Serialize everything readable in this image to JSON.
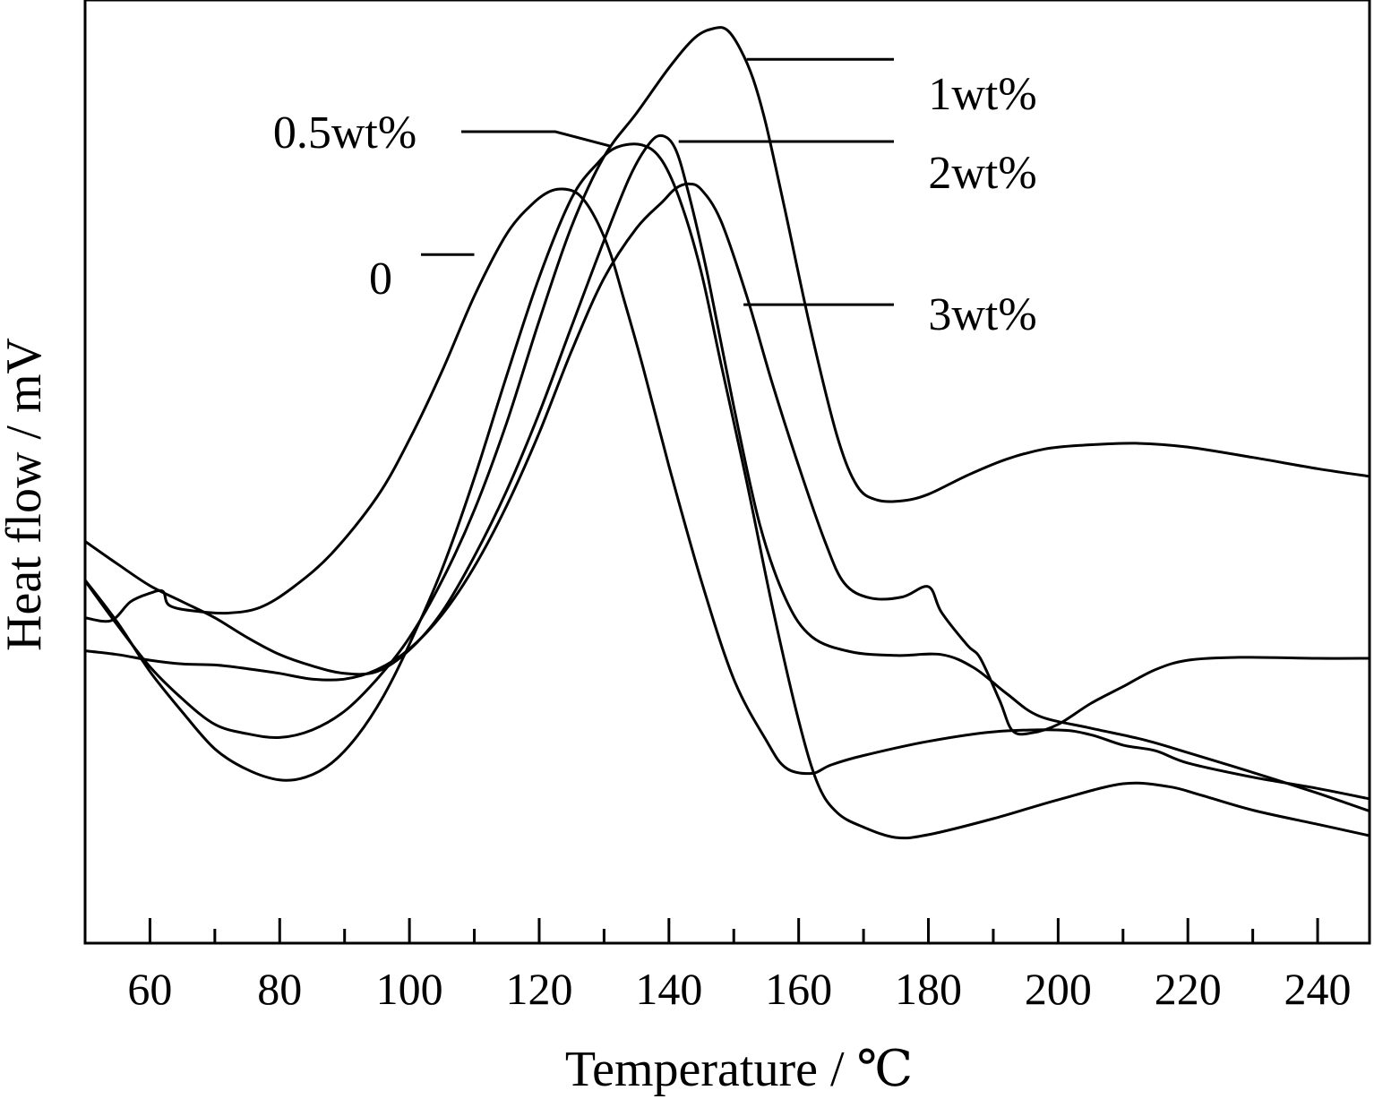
{
  "chart_data": {
    "type": "line",
    "xlabel": "Temperature / ℃",
    "ylabel": "Heat flow / mV",
    "xlim": [
      50,
      248
    ],
    "ylim": [
      0,
      100
    ],
    "x_ticks_major": [
      60,
      80,
      100,
      120,
      140,
      160,
      180,
      200,
      220,
      240
    ],
    "x_ticks_minor": [
      70,
      90,
      110,
      130,
      150,
      170,
      190,
      210,
      230
    ],
    "y_ticks": "none",
    "grid": false,
    "legend": "inline labels",
    "series": [
      {
        "name": "0",
        "label_anchor": [
          110,
          73
        ],
        "points": [
          [
            50,
            34.5
          ],
          [
            54,
            34.2
          ],
          [
            57,
            36.2
          ],
          [
            60,
            37.1
          ],
          [
            62,
            37.3
          ],
          [
            63,
            35.8
          ],
          [
            67,
            35.2
          ],
          [
            72,
            35.0
          ],
          [
            77,
            35.6
          ],
          [
            82,
            37.7
          ],
          [
            88,
            41.3
          ],
          [
            95,
            47.3
          ],
          [
            100,
            53.4
          ],
          [
            105,
            60.6
          ],
          [
            110,
            68.6
          ],
          [
            115,
            75.2
          ],
          [
            119,
            78.4
          ],
          [
            122,
            79.8
          ],
          [
            125,
            79.8
          ],
          [
            127,
            78.7
          ],
          [
            129,
            76.4
          ],
          [
            131,
            73.1
          ],
          [
            133,
            68.4
          ],
          [
            136,
            61.1
          ],
          [
            140,
            50.6
          ],
          [
            145,
            38.4
          ],
          [
            150,
            28.0
          ],
          [
            155,
            21.5
          ],
          [
            158,
            18.6
          ],
          [
            162,
            18.0
          ],
          [
            165,
            18.9
          ],
          [
            170,
            19.9
          ],
          [
            180,
            21.4
          ],
          [
            190,
            22.4
          ],
          [
            200,
            22.6
          ],
          [
            205,
            22.1
          ],
          [
            210,
            21.0
          ],
          [
            215,
            20.4
          ],
          [
            220,
            19.1
          ],
          [
            230,
            17.6
          ],
          [
            240,
            16.4
          ],
          [
            248,
            15.3
          ]
        ]
      },
      {
        "name": "0.5wt%",
        "label_anchor": [
          131,
          84.5
        ],
        "points": [
          [
            50,
            38.5
          ],
          [
            55,
            34.0
          ],
          [
            60,
            28.8
          ],
          [
            65,
            24.5
          ],
          [
            70,
            20.6
          ],
          [
            75,
            18.4
          ],
          [
            80,
            17.3
          ],
          [
            84,
            17.6
          ],
          [
            88,
            19.1
          ],
          [
            92,
            22.0
          ],
          [
            96,
            26.2
          ],
          [
            100,
            31.7
          ],
          [
            105,
            39.6
          ],
          [
            110,
            49.3
          ],
          [
            115,
            60.2
          ],
          [
            120,
            70.6
          ],
          [
            125,
            79.0
          ],
          [
            129,
            82.7
          ],
          [
            132,
            84.4
          ],
          [
            136,
            84.6
          ],
          [
            139,
            82.9
          ],
          [
            142,
            78.2
          ],
          [
            145,
            71.1
          ],
          [
            148,
            61.5
          ],
          [
            152,
            48.9
          ],
          [
            156,
            35.5
          ],
          [
            160,
            23.6
          ],
          [
            163,
            16.8
          ],
          [
            166,
            13.8
          ],
          [
            170,
            12.3
          ],
          [
            175,
            11.2
          ],
          [
            180,
            11.5
          ],
          [
            190,
            13.2
          ],
          [
            200,
            15.2
          ],
          [
            210,
            16.9
          ],
          [
            217,
            16.6
          ],
          [
            222,
            15.7
          ],
          [
            230,
            14.1
          ],
          [
            240,
            12.6
          ],
          [
            248,
            11.4
          ]
        ]
      },
      {
        "name": "1wt%",
        "label_anchor": [
          152,
          93.7
        ],
        "points": [
          [
            50,
            38.4
          ],
          [
            55,
            33.7
          ],
          [
            60,
            29.3
          ],
          [
            65,
            25.9
          ],
          [
            70,
            23.2
          ],
          [
            75,
            22.2
          ],
          [
            80,
            21.8
          ],
          [
            85,
            22.6
          ],
          [
            90,
            24.6
          ],
          [
            95,
            28.0
          ],
          [
            100,
            32.4
          ],
          [
            105,
            38.4
          ],
          [
            110,
            45.9
          ],
          [
            115,
            55.2
          ],
          [
            120,
            66.0
          ],
          [
            125,
            76.0
          ],
          [
            130,
            83.4
          ],
          [
            135,
            88.0
          ],
          [
            140,
            92.8
          ],
          [
            144,
            96.0
          ],
          [
            147,
            97.0
          ],
          [
            149,
            96.8
          ],
          [
            151,
            94.8
          ],
          [
            153,
            91.6
          ],
          [
            155,
            86.7
          ],
          [
            158,
            77.4
          ],
          [
            162,
            64.6
          ],
          [
            166,
            53.6
          ],
          [
            169,
            48.5
          ],
          [
            172,
            47.0
          ],
          [
            176,
            46.9
          ],
          [
            180,
            47.6
          ],
          [
            186,
            49.6
          ],
          [
            192,
            51.3
          ],
          [
            198,
            52.4
          ],
          [
            204,
            52.8
          ],
          [
            212,
            53.0
          ],
          [
            220,
            52.6
          ],
          [
            230,
            51.5
          ],
          [
            240,
            50.3
          ],
          [
            248,
            49.5
          ]
        ]
      },
      {
        "name": "2wt%",
        "label_anchor": [
          141.5,
          85
        ],
        "points": [
          [
            50,
            42.6
          ],
          [
            55,
            40.2
          ],
          [
            60,
            37.9
          ],
          [
            65,
            36.2
          ],
          [
            70,
            34.5
          ],
          [
            75,
            32.4
          ],
          [
            80,
            30.6
          ],
          [
            85,
            29.4
          ],
          [
            90,
            28.6
          ],
          [
            95,
            28.8
          ],
          [
            100,
            31.1
          ],
          [
            105,
            35.1
          ],
          [
            110,
            41.0
          ],
          [
            115,
            48.0
          ],
          [
            120,
            56.2
          ],
          [
            125,
            65.4
          ],
          [
            130,
            74.5
          ],
          [
            134,
            81.3
          ],
          [
            137,
            84.8
          ],
          [
            139,
            85.6
          ],
          [
            141,
            84.2
          ],
          [
            143,
            79.6
          ],
          [
            146,
            70.7
          ],
          [
            150,
            56.9
          ],
          [
            154,
            44.4
          ],
          [
            158,
            36.5
          ],
          [
            162,
            32.5
          ],
          [
            168,
            30.9
          ],
          [
            175,
            30.5
          ],
          [
            182,
            30.6
          ],
          [
            187,
            29.2
          ],
          [
            192,
            26.5
          ],
          [
            197,
            24.1
          ],
          [
            205,
            22.8
          ],
          [
            213,
            21.6
          ],
          [
            220,
            20.2
          ],
          [
            230,
            18.1
          ],
          [
            240,
            15.9
          ],
          [
            248,
            14.0
          ]
        ]
      },
      {
        "name": "3wt%",
        "label_anchor": [
          151.5,
          67.7
        ],
        "points": [
          [
            50,
            31.0
          ],
          [
            55,
            30.6
          ],
          [
            60,
            30.0
          ],
          [
            65,
            29.6
          ],
          [
            70,
            29.5
          ],
          [
            75,
            29.1
          ],
          [
            80,
            28.6
          ],
          [
            85,
            28.0
          ],
          [
            90,
            28.0
          ],
          [
            95,
            29.0
          ],
          [
            100,
            31.2
          ],
          [
            105,
            34.8
          ],
          [
            110,
            39.9
          ],
          [
            115,
            46.4
          ],
          [
            120,
            54.1
          ],
          [
            125,
            62.8
          ],
          [
            130,
            70.5
          ],
          [
            135,
            75.8
          ],
          [
            139,
            78.6
          ],
          [
            141,
            80.0
          ],
          [
            143,
            80.5
          ],
          [
            145,
            79.9
          ],
          [
            148,
            76.6
          ],
          [
            152,
            68.6
          ],
          [
            156,
            59.2
          ],
          [
            160,
            50.6
          ],
          [
            164,
            42.7
          ],
          [
            167,
            38.2
          ],
          [
            171,
            36.6
          ],
          [
            176,
            36.7
          ],
          [
            180,
            37.8
          ],
          [
            182,
            35.1
          ],
          [
            186,
            31.6
          ],
          [
            188,
            30.2
          ],
          [
            191,
            25.7
          ],
          [
            193,
            22.5
          ],
          [
            196,
            22.3
          ],
          [
            200,
            23.2
          ],
          [
            205,
            25.4
          ],
          [
            210,
            27.2
          ],
          [
            215,
            29.0
          ],
          [
            220,
            30.0
          ],
          [
            228,
            30.3
          ],
          [
            240,
            30.2
          ],
          [
            248,
            30.2
          ]
        ]
      }
    ]
  }
}
